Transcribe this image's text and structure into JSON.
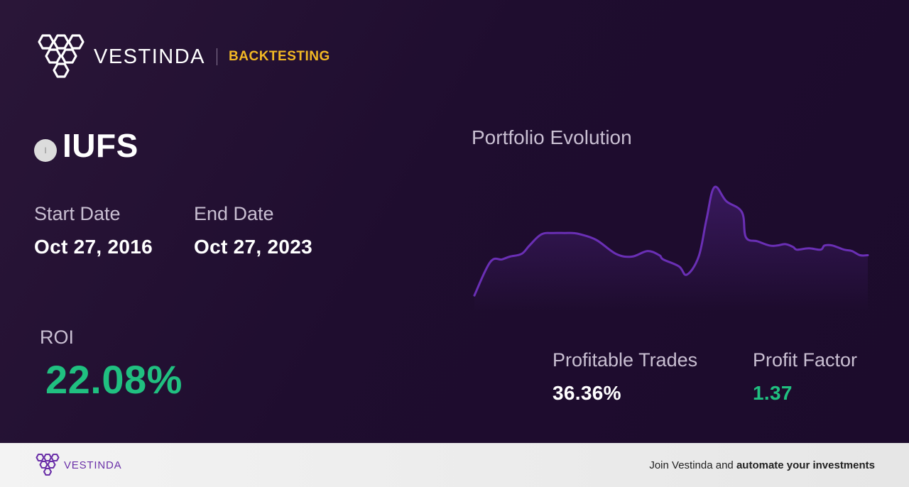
{
  "brand": {
    "name": "VESTINDA",
    "tag": "BACKTESTING",
    "logo_icon": "hexagon-cluster-logo-icon",
    "tag_color": "#f2b824"
  },
  "strategy": {
    "ticker_icon": "I",
    "ticker": "IUFS",
    "start_date_label": "Start Date",
    "start_date": "Oct 27, 2016",
    "end_date_label": "End Date",
    "end_date": "Oct 27, 2023"
  },
  "metrics": {
    "roi_label": "ROI",
    "roi": "22.08%",
    "profitable_trades_label": "Profitable Trades",
    "profitable_trades": "36.36%",
    "profit_factor_label": "Profit Factor",
    "profit_factor": "1.37",
    "positive_color": "#20c080"
  },
  "chart_data": {
    "type": "area",
    "title": "Portfolio Evolution",
    "xlabel": "",
    "ylabel": "",
    "grid": false,
    "line_color": "#6a2fb5",
    "x": [
      0,
      4,
      7,
      9,
      12,
      14,
      17,
      20,
      23,
      25,
      27,
      31,
      36,
      40,
      44,
      47,
      48,
      52,
      54,
      57,
      59,
      61,
      64,
      68,
      69,
      72,
      75,
      77,
      79,
      81,
      82,
      85,
      88,
      89,
      91,
      94,
      96,
      98,
      100
    ],
    "values": [
      0,
      24,
      26,
      28,
      30,
      36,
      44,
      45,
      45,
      45,
      44,
      40,
      30,
      28,
      32,
      29,
      26,
      21,
      15,
      28,
      55,
      78,
      68,
      60,
      42,
      39,
      36,
      36,
      37,
      35,
      33,
      34,
      33,
      36,
      36,
      33,
      32,
      29,
      29
    ],
    "ylim": [
      -5,
      85
    ]
  },
  "footer": {
    "brand": "VESTINDA",
    "cta_prefix": "Join Vestinda and ",
    "cta_bold": "automate your investments"
  }
}
